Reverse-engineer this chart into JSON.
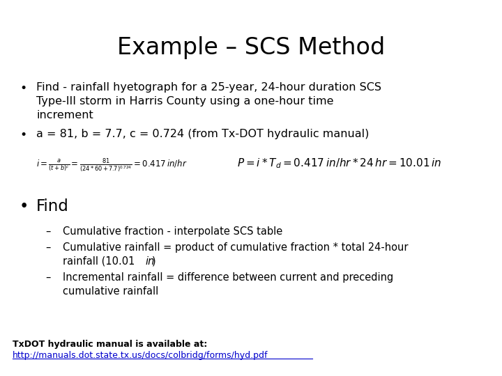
{
  "title": "Example – SCS Method",
  "background_color": "#ffffff",
  "title_fontsize": 24,
  "bullet1_line1": "Find - rainfall hyetograph for a 25-year, 24-hour duration SCS",
  "bullet1_line2": "Type-III storm in Harris County using a one-hour time",
  "bullet1_line3": "increment",
  "bullet2": "a = 81, b = 7.7, c = 0.724 (from Tx-DOT hydraulic manual)",
  "formula_left": "$i = \\frac{a}{(t+b)^c} = \\frac{81}{(24*60+7.7)^{0.724}} = 0.417\\,in/hr$",
  "formula_right": "$P = i*T_d = 0.417\\,in/hr*24\\,hr = 10.01\\,in$",
  "bullet3": "Find",
  "sub1": "Cumulative fraction - interpolate SCS table",
  "sub2_line1": "Cumulative rainfall = product of cumulative fraction * total 24-hour",
  "sub2_line2_pre": "rainfall (10.01 ",
  "sub2_line2_italic": "in",
  "sub2_line2_post": ")",
  "sub3_line1": "Incremental rainfall = difference between current and preceding",
  "sub3_line2": "cumulative rainfall",
  "footer1": "TxDOT hydraulic manual is available at:",
  "footer2": "http://manuals.dot.state.tx.us/docs/colbridg/forms/hyd.pdf",
  "text_color": "#000000",
  "link_color": "#0000cc",
  "title_fs": 24,
  "bullet_fs": 11.5,
  "sub_fs": 10.5,
  "footer_fs": 9,
  "formula_fs": 8.5
}
